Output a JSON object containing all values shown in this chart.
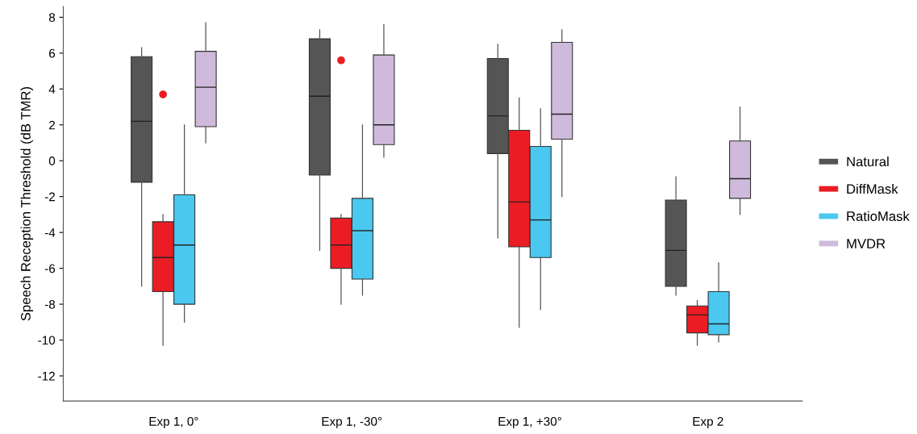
{
  "chart_data": {
    "type": "box",
    "ylabel": "Speech Reception Threshold (dB TMR)",
    "categories": [
      "Exp 1, 0°",
      "Exp 1, -30°",
      "Exp 1, +30°",
      "Exp 2"
    ],
    "ylim": [
      -13.4,
      8.6
    ],
    "yticks": [
      -12,
      -10,
      -8,
      -6,
      -4,
      -2,
      0,
      2,
      4,
      6,
      8
    ],
    "grid": false,
    "legend": "right",
    "series": [
      {
        "name": "Natural",
        "color": "#555555",
        "boxes": [
          {
            "low": -7.0,
            "q1": -1.2,
            "median": 2.2,
            "q3": 5.8,
            "high": 6.3
          },
          {
            "low": -5.0,
            "q1": -0.8,
            "median": 3.6,
            "q3": 6.8,
            "high": 7.3
          },
          {
            "low": -4.3,
            "q1": 0.4,
            "median": 2.5,
            "q3": 5.7,
            "high": 6.5
          },
          {
            "low": -7.5,
            "q1": -7.0,
            "median": -5.0,
            "q3": -2.2,
            "high": -0.9
          }
        ]
      },
      {
        "name": "DiffMask",
        "color": "#ec1c24",
        "boxes": [
          {
            "low": -10.3,
            "q1": -7.3,
            "median": -5.4,
            "q3": -3.4,
            "high": -3.0,
            "outliers": [
              3.7
            ]
          },
          {
            "low": -8.0,
            "q1": -6.0,
            "median": -4.7,
            "q3": -3.2,
            "high": -3.0,
            "outliers": [
              5.6
            ]
          },
          {
            "low": -9.3,
            "q1": -4.8,
            "median": -2.3,
            "q3": 1.7,
            "high": 3.5
          },
          {
            "low": -10.3,
            "q1": -9.6,
            "median": -8.6,
            "q3": -8.1,
            "high": -7.8
          }
        ]
      },
      {
        "name": "RatioMask",
        "color": "#4ac8f0",
        "boxes": [
          {
            "low": -9.0,
            "q1": -8.0,
            "median": -4.7,
            "q3": -1.9,
            "high": 2.0
          },
          {
            "low": -7.5,
            "q1": -6.6,
            "median": -3.9,
            "q3": -2.1,
            "high": 2.0
          },
          {
            "low": -8.3,
            "q1": -5.4,
            "median": -3.3,
            "q3": 0.8,
            "high": 2.9
          },
          {
            "low": -10.1,
            "q1": -9.7,
            "median": -9.1,
            "q3": -7.3,
            "high": -5.7
          }
        ]
      },
      {
        "name": "MVDR",
        "color": "#cfbadc",
        "boxes": [
          {
            "low": 1.0,
            "q1": 1.9,
            "median": 4.1,
            "q3": 6.1,
            "high": 7.7
          },
          {
            "low": 0.2,
            "q1": 0.9,
            "median": 2.0,
            "q3": 5.9,
            "high": 7.6
          },
          {
            "low": -2.0,
            "q1": 1.2,
            "median": 2.6,
            "q3": 6.6,
            "high": 7.3
          },
          {
            "low": -3.0,
            "q1": -2.1,
            "median": -1.0,
            "q3": 1.1,
            "high": 3.0
          }
        ]
      }
    ]
  }
}
